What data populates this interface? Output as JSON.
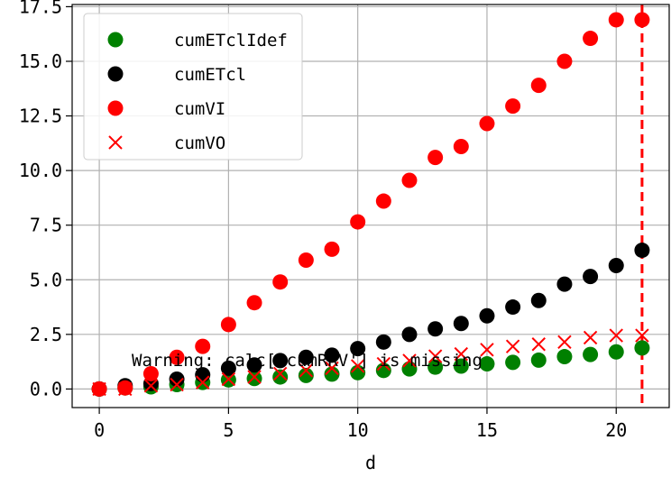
{
  "chart_data": {
    "type": "scatter",
    "title": "",
    "xlabel": "d",
    "ylabel": "",
    "xlim": [
      -1.05,
      22.05
    ],
    "ylim": [
      -0.85,
      17.6
    ],
    "xticks": [
      0,
      5,
      10,
      15,
      20
    ],
    "xtick_labels": [
      "0",
      "5",
      "10",
      "15",
      "20"
    ],
    "yticks": [
      0,
      2.5,
      5,
      7.5,
      10,
      12.5,
      15,
      17.5
    ],
    "ytick_labels": [
      "0.0",
      "2.5",
      "5.0",
      "7.5",
      "10.0",
      "12.5",
      "15.0",
      "17.5"
    ],
    "grid": true,
    "legend_position": "top-left",
    "vertical_line": {
      "x": 21,
      "color": "#ff0000",
      "style": "dashed"
    },
    "annotation": "Warning: calc['cumRRV'] is missing",
    "x": [
      0,
      1,
      2,
      3,
      4,
      5,
      6,
      7,
      8,
      9,
      10,
      11,
      12,
      13,
      14,
      15,
      16,
      17,
      18,
      19,
      20,
      21
    ],
    "series": [
      {
        "name": "cumETclIdef",
        "marker": "circle",
        "color": "#008000",
        "values": [
          0.0,
          0.05,
          0.1,
          0.2,
          0.3,
          0.42,
          0.48,
          0.55,
          0.62,
          0.68,
          0.75,
          0.85,
          0.92,
          1.0,
          1.05,
          1.15,
          1.22,
          1.32,
          1.48,
          1.58,
          1.7,
          1.88
        ]
      },
      {
        "name": "cumETcl",
        "marker": "circle",
        "color": "#000000",
        "values": [
          0.0,
          0.15,
          0.25,
          0.45,
          0.65,
          0.95,
          1.1,
          1.3,
          1.45,
          1.55,
          1.85,
          2.15,
          2.5,
          2.75,
          3.0,
          3.35,
          3.75,
          4.05,
          4.8,
          5.15,
          5.65,
          6.35
        ]
      },
      {
        "name": "cumVI",
        "marker": "circle",
        "color": "#ff0000",
        "values": [
          0.0,
          0.05,
          0.7,
          1.45,
          1.95,
          2.95,
          3.95,
          4.9,
          5.9,
          6.4,
          7.65,
          8.6,
          9.55,
          10.6,
          11.1,
          12.15,
          12.95,
          13.9,
          15.0,
          16.05,
          16.9,
          16.9
        ]
      },
      {
        "name": "cumVO",
        "marker": "x",
        "color": "#ff0000",
        "values": [
          0.0,
          0.0,
          0.15,
          0.2,
          0.3,
          0.45,
          0.55,
          0.7,
          0.85,
          0.95,
          1.05,
          1.15,
          1.3,
          1.5,
          1.6,
          1.8,
          1.95,
          2.05,
          2.15,
          2.35,
          2.45,
          2.45
        ]
      }
    ]
  }
}
